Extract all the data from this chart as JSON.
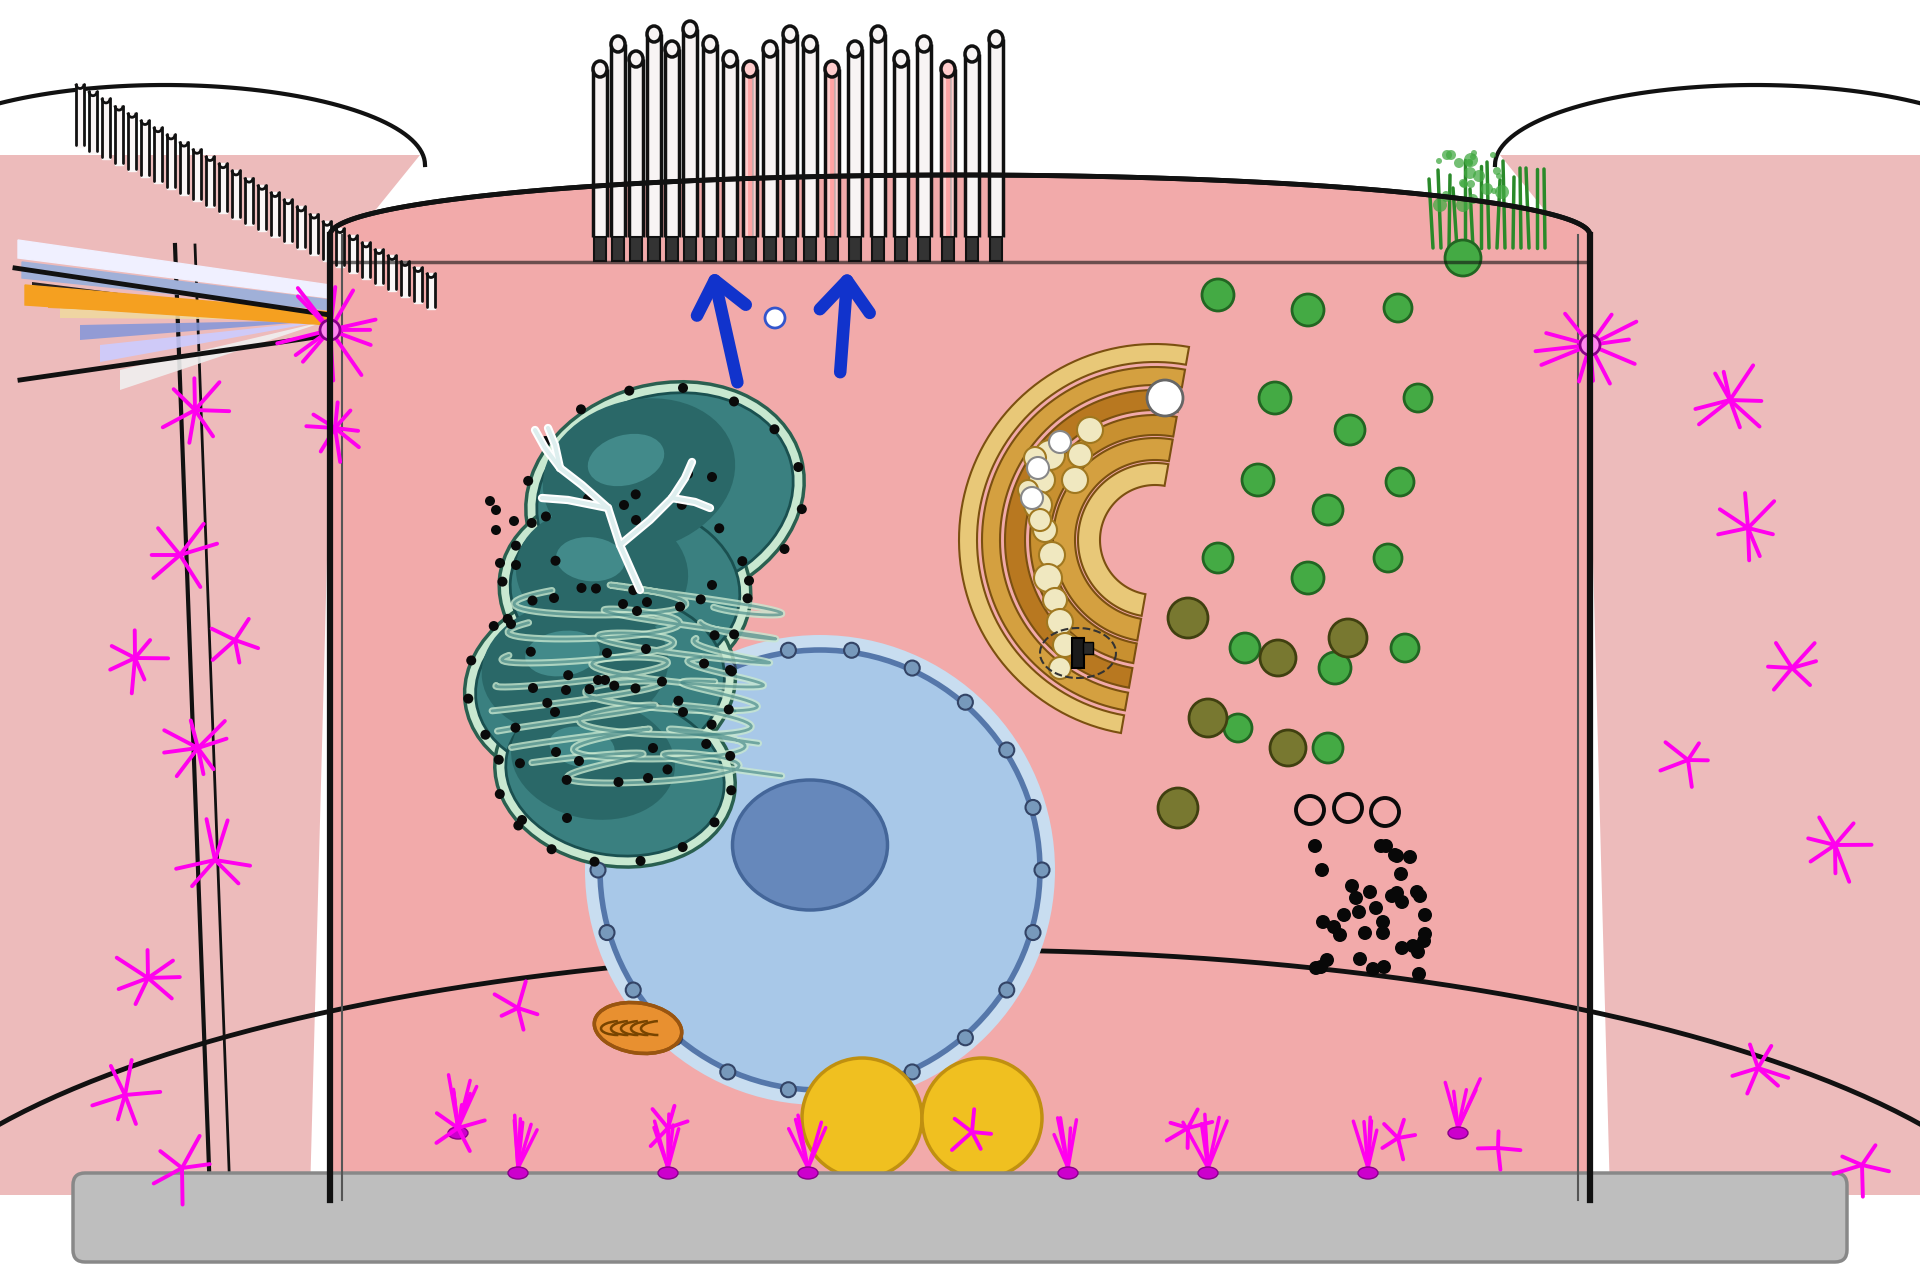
{
  "bg": "#FFFFFF",
  "cell_pink": "#F2AAAA",
  "cell_light_pink": "#F5C8C8",
  "outer_pink": "#EDBBBB",
  "cell_stroke": "#111111",
  "arrow_blue": "#1133CC",
  "magenta": "#FF00EE",
  "teal_dark": "#2A6868",
  "teal_mid": "#3A8080",
  "teal_light": "#5AACAC",
  "er_cream": "#D8EEE0",
  "nucleus_blue": "#A8C8E8",
  "nucleolus": "#6688BB",
  "golgi_gold": "#C8A030",
  "golgi_light": "#E8C878",
  "golgi_dark": "#8B6010",
  "green_bright": "#44AA44",
  "green_dark": "#226622",
  "olive": "#787830",
  "yellow": "#F0C020",
  "orange_mito": "#E89030",
  "gray_band": "#BBBBBB",
  "figsize": [
    19.2,
    12.8
  ],
  "dpi": 100
}
